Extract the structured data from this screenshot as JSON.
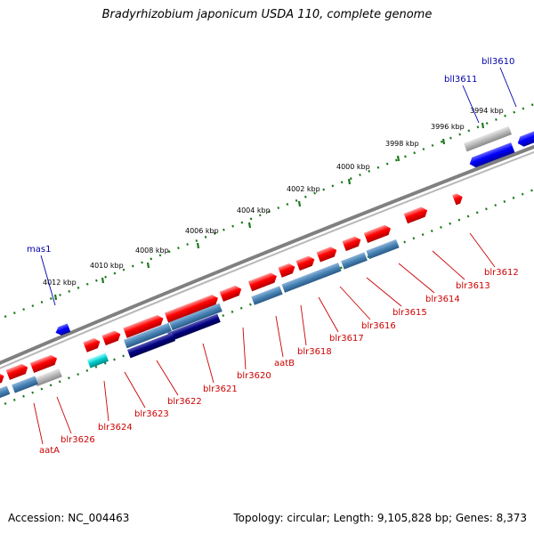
{
  "title": "Bradyrhizobium japonicum USDA 110, complete genome",
  "accession_label": "Accession: NC_004463",
  "topology_label": "Topology: circular; Length: 9,105,828 bp; Genes: 8,373",
  "colors": {
    "backbone": "#808080",
    "ruler": "#1a7a1a",
    "forward_gene": "#ff0000",
    "reverse_gene": "#0000ff",
    "forward_label": "#cc0000",
    "reverse_label": "#0000aa",
    "cds_steel": "#4682b4",
    "cds_navy": "#000080",
    "cds_grey": "#b0b0b0",
    "cds_cyan": "#00cccc"
  },
  "ruler_ticks": [
    "3994 kbp",
    "3996 kbp",
    "3998 kbp",
    "4000 kbp",
    "4002 kbp",
    "4004 kbp",
    "4006 kbp",
    "4008 kbp",
    "4010 kbp",
    "4012 kbp"
  ],
  "genes_reverse": [
    {
      "name": "bll3610",
      "label_color": "#0000aa"
    },
    {
      "name": "bll3611",
      "label_color": "#0000aa"
    },
    {
      "name": "mas1",
      "label_color": "#0000aa"
    }
  ],
  "genes_forward": [
    "blr3612",
    "blr3613",
    "blr3614",
    "blr3615",
    "blr3616",
    "blr3617",
    "blr3618",
    "aatB",
    "blr3620",
    "blr3621",
    "blr3622",
    "blr3623",
    "blr3624",
    "blr3626",
    "aatA"
  ]
}
